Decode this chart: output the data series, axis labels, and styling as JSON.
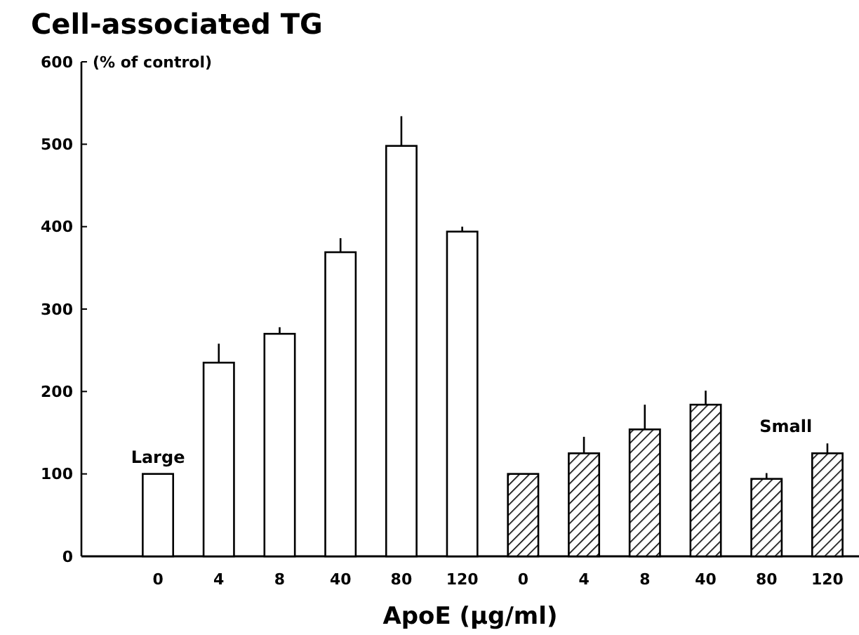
{
  "chart_data": {
    "type": "bar",
    "title": "Cell-associated TG",
    "ylabel": "(% of control)",
    "xlabel": "ApoE (µg/ml)",
    "categories": [
      "0",
      "4",
      "8",
      "40",
      "80",
      "120",
      "0",
      "4",
      "8",
      "40",
      "80",
      "120"
    ],
    "series": [
      {
        "name": "Large",
        "color": "#ffffff",
        "values": [
          100,
          235,
          270,
          369,
          498,
          394,
          null,
          null,
          null,
          null,
          null,
          null
        ],
        "errors": [
          null,
          [
            235,
            258
          ],
          [
            270,
            278
          ],
          [
            369,
            386
          ],
          [
            498,
            534
          ],
          [
            394,
            400
          ],
          null,
          null,
          null,
          null,
          null,
          null
        ]
      },
      {
        "name": "Small",
        "color": "#000000",
        "values": [
          null,
          null,
          null,
          null,
          null,
          null,
          100,
          125,
          154,
          184,
          94,
          125
        ],
        "errors": [
          null,
          null,
          null,
          null,
          null,
          null,
          null,
          [
            125,
            145
          ],
          [
            154,
            184
          ],
          [
            184,
            201
          ],
          [
            94,
            101
          ],
          [
            125,
            137
          ]
        ]
      }
    ],
    "ylim": [
      0,
      600
    ],
    "yticks": [
      0,
      100,
      200,
      300,
      400,
      500,
      600
    ],
    "grid": false
  }
}
